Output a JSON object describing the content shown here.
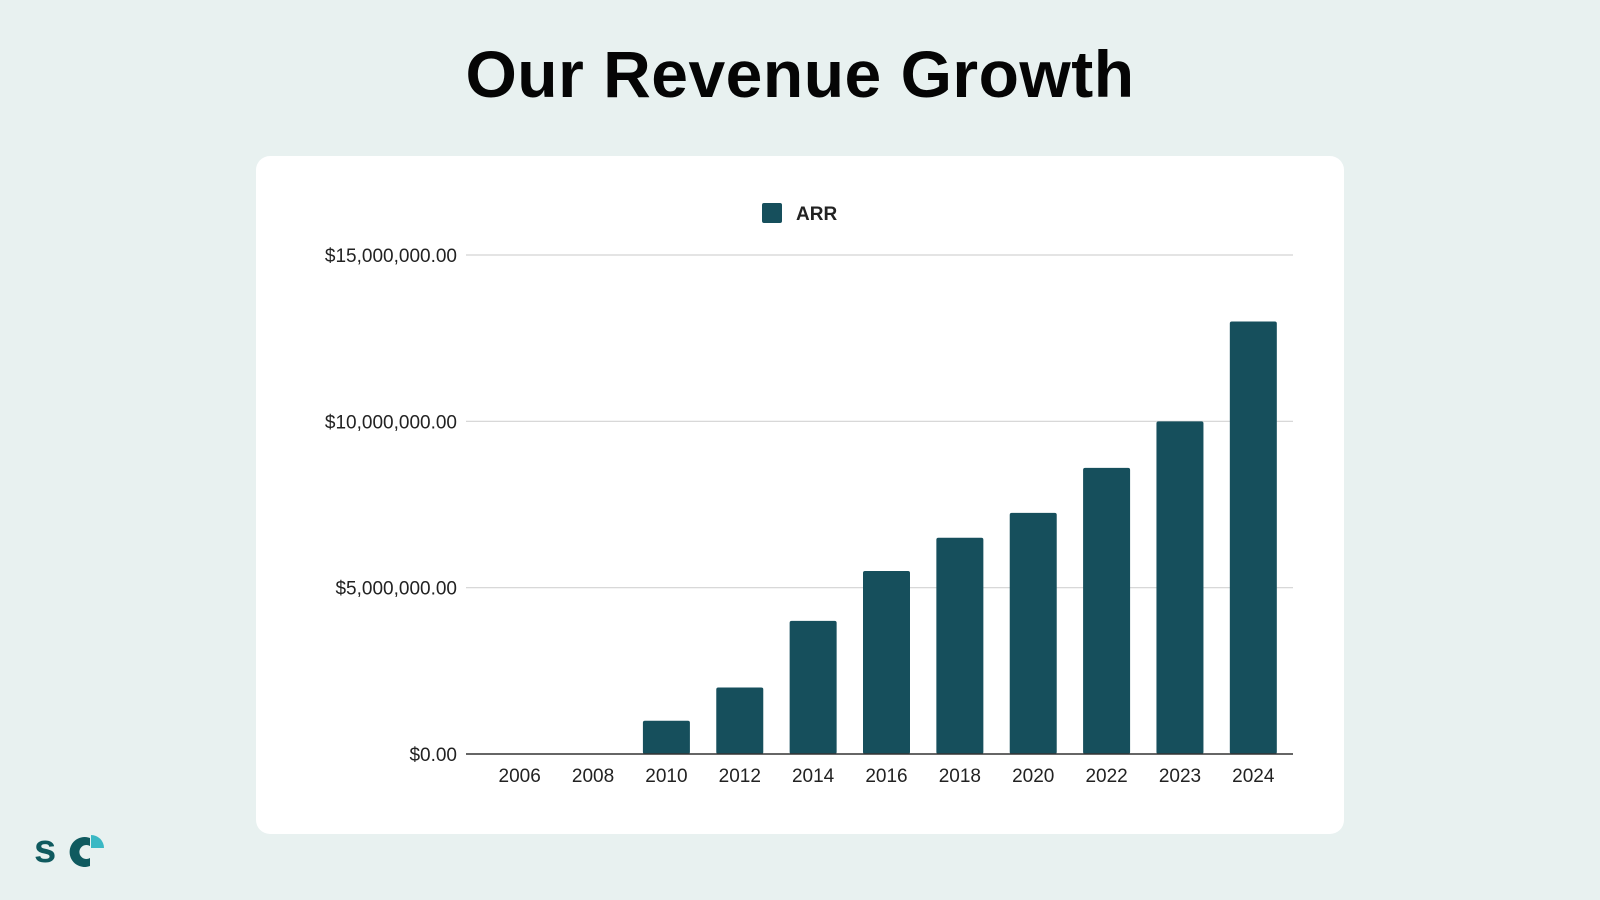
{
  "slide": {
    "title": "Our Revenue Growth"
  },
  "logo": {
    "text": "s",
    "name": "sc-logo"
  },
  "colors": {
    "bar": "#164f5c",
    "background": "#e8f1f0",
    "card": "#ffffff",
    "grid": "#d3d3d3",
    "axis": "#333333",
    "text": "#222222",
    "logo_dark": "#0f5a5f",
    "logo_accent": "#3ab8c4"
  },
  "chart_data": {
    "type": "bar",
    "title": "",
    "xlabel": "",
    "ylabel": "",
    "legend": {
      "position": "top-center",
      "entries": [
        "ARR"
      ]
    },
    "categories": [
      "2006",
      "2008",
      "2010",
      "2012",
      "2014",
      "2016",
      "2018",
      "2020",
      "2022",
      "2023",
      "2024"
    ],
    "series": [
      {
        "name": "ARR",
        "values": [
          0,
          0,
          1000000,
          2000000,
          4000000,
          5500000,
          6500000,
          7250000,
          8600000,
          10000000,
          13000000
        ]
      }
    ],
    "ylim": [
      0,
      15000000
    ],
    "yticks": [
      0,
      5000000,
      10000000,
      15000000
    ],
    "ytick_labels": [
      "$0.00",
      "$5,000,000.00",
      "$10,000,000.00",
      "$15,000,000.00"
    ],
    "grid": true
  }
}
